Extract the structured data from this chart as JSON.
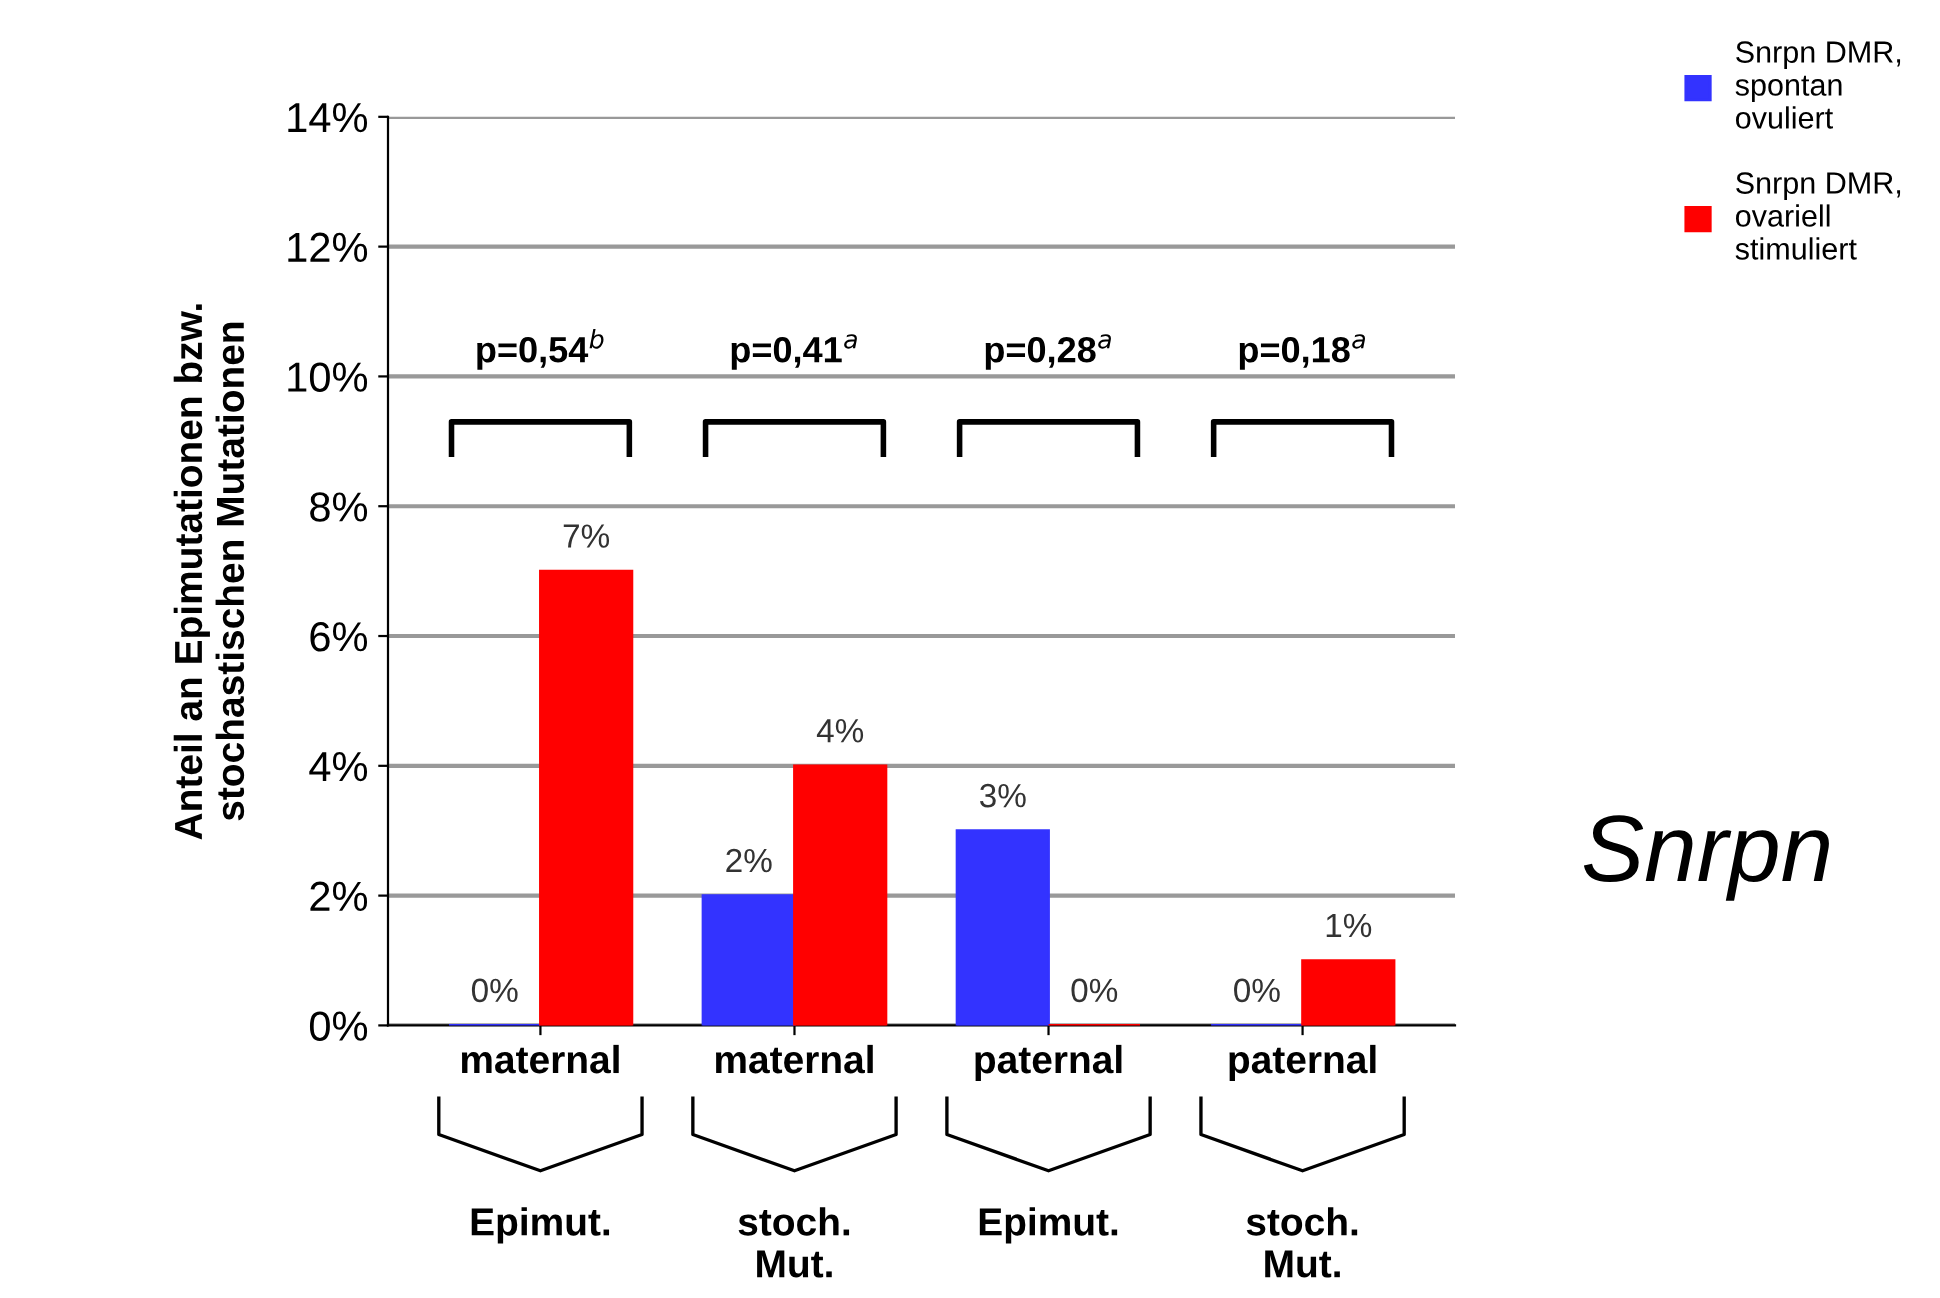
{
  "chart_data": {
    "type": "bar",
    "categories": [
      "maternal",
      "maternal",
      "paternal",
      "paternal"
    ],
    "ylabel": "Anteil an Epimutationen bzw.\nstochastischen Mutationen",
    "ylim": [
      0,
      14
    ],
    "yticks": [
      {
        "value": 0,
        "label": "0%"
      },
      {
        "value": 2,
        "label": "2%"
      },
      {
        "value": 4,
        "label": "4%"
      },
      {
        "value": 6,
        "label": "6%"
      },
      {
        "value": 8,
        "label": "8%"
      },
      {
        "value": 10,
        "label": "10%"
      },
      {
        "value": 12,
        "label": "12%"
      },
      {
        "value": 14,
        "label": "14%"
      }
    ],
    "grid": "y",
    "legend": "top right",
    "series": [
      {
        "name": "Snrpn DMR, spontan ovuliert",
        "color": "#3333ff",
        "values": [
          0,
          2,
          3,
          0
        ],
        "value_labels": [
          "0%",
          "2%",
          "3%",
          "0%"
        ]
      },
      {
        "name": "Snrpn DMR, ovariell stimuliert",
        "color": "#ff0000",
        "values": [
          7,
          4,
          0,
          1
        ],
        "value_labels": [
          "7%",
          "4%",
          "0%",
          "1%"
        ]
      }
    ],
    "annotations": [
      "p=0,54$^{b}$",
      "p=0,41$^{a}$",
      "p=0,28$^{a}$",
      "p=0,18$^{a}$",
      "Epimut.",
      "stoch. Mut.",
      "Epimut.",
      "stoch. Mut.",
      "Snrpn"
    ]
  }
}
